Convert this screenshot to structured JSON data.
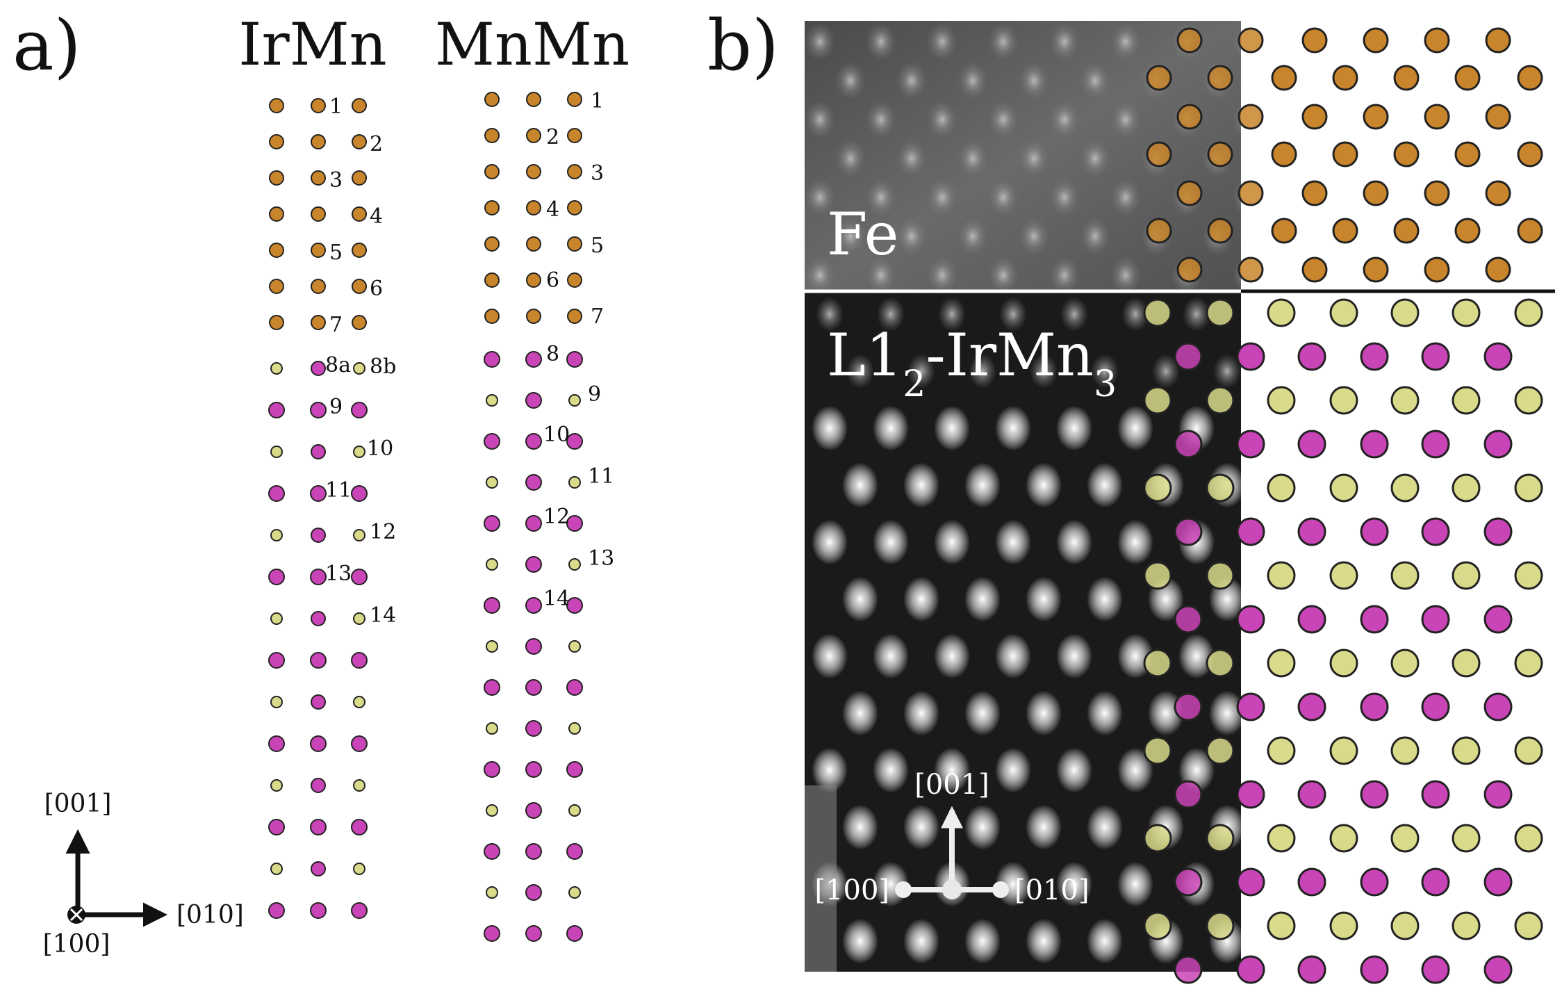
{
  "colors": {
    "fe": "#c8852c",
    "mn": "#c944b6",
    "ir": "#d9da8a",
    "outline": "#222222"
  },
  "panel_a": {
    "label": "a)",
    "columns": [
      {
        "title": "IrMn",
        "row_count": 21,
        "fe_rows": 7,
        "layer_numbers": [
          "1",
          "2",
          "3",
          "4",
          "5",
          "6",
          "7",
          "8a",
          "8b",
          "9",
          "10",
          "11",
          "12",
          "13",
          "14"
        ]
      },
      {
        "title": "MnMn",
        "row_count": 22,
        "fe_rows": 7,
        "layer_numbers": [
          "1",
          "2",
          "3",
          "4",
          "5",
          "6",
          "7",
          "8",
          "9",
          "10",
          "11",
          "12",
          "13",
          "14"
        ]
      }
    ],
    "axes": {
      "up": "[001]",
      "right": "[010]",
      "out": "[100]"
    }
  },
  "panel_b": {
    "label": "b)",
    "fe_region": "Fe",
    "irmn_region": {
      "prefix": "L1",
      "sub1": "2",
      "middle": "-IrMn",
      "sub2": "3"
    },
    "axes": {
      "up": "[001]",
      "left": "[100]",
      "right": "[010]"
    }
  }
}
